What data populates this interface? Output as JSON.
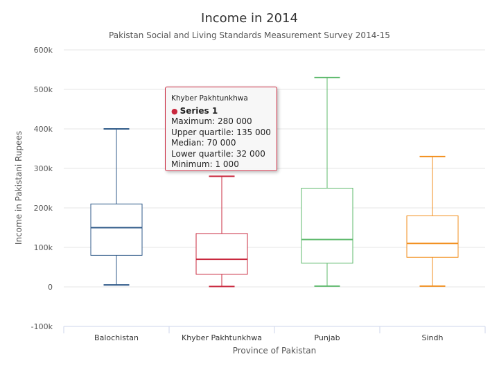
{
  "chart_data": {
    "type": "boxplot",
    "title": "Income in 2014",
    "subtitle": "Pakistan Social and Living Standards Measurement Survey 2014-15",
    "xlabel": "Province of Pakistan",
    "ylabel": "Income in Pakistani Rupees",
    "ylim": [
      -100000,
      600000
    ],
    "y_ticks": [
      -100000,
      0,
      100000,
      200000,
      300000,
      400000,
      500000,
      600000
    ],
    "y_tick_labels": [
      "-100k",
      "0",
      "100k",
      "200k",
      "300k",
      "400k",
      "500k",
      "600k"
    ],
    "grid": true,
    "categories": [
      "Balochistan",
      "Khyber Pakhtunkhwa",
      "Punjab",
      "Sindh"
    ],
    "series": [
      {
        "name": "Series 1",
        "boxes": [
          {
            "category": "Balochistan",
            "low": 5000,
            "q1": 80000,
            "median": 150000,
            "q3": 210000,
            "high": 400000,
            "color": "#2f5a88"
          },
          {
            "category": "Khyber Pakhtunkhwa",
            "low": 1000,
            "q1": 32000,
            "median": 70000,
            "q3": 135000,
            "high": 280000,
            "color": "#c9283e"
          },
          {
            "category": "Punjab",
            "low": 2000,
            "q1": 60000,
            "median": 120000,
            "q3": 250000,
            "high": 530000,
            "color": "#5cb96b"
          },
          {
            "category": "Sindh",
            "low": 2000,
            "q1": 75000,
            "median": 110000,
            "q3": 180000,
            "high": 330000,
            "color": "#f28e1c"
          }
        ]
      }
    ]
  },
  "tooltip": {
    "header": "Khyber Pakhtunkhwa",
    "series_dot": "●",
    "series_name": "Series 1",
    "rows": [
      "Maximum: 280 000",
      "Upper quartile: 135 000",
      "Median: 70 000",
      "Lower quartile: 32 000",
      "Minimum: 1 000"
    ],
    "border_color": "#c9283e"
  }
}
